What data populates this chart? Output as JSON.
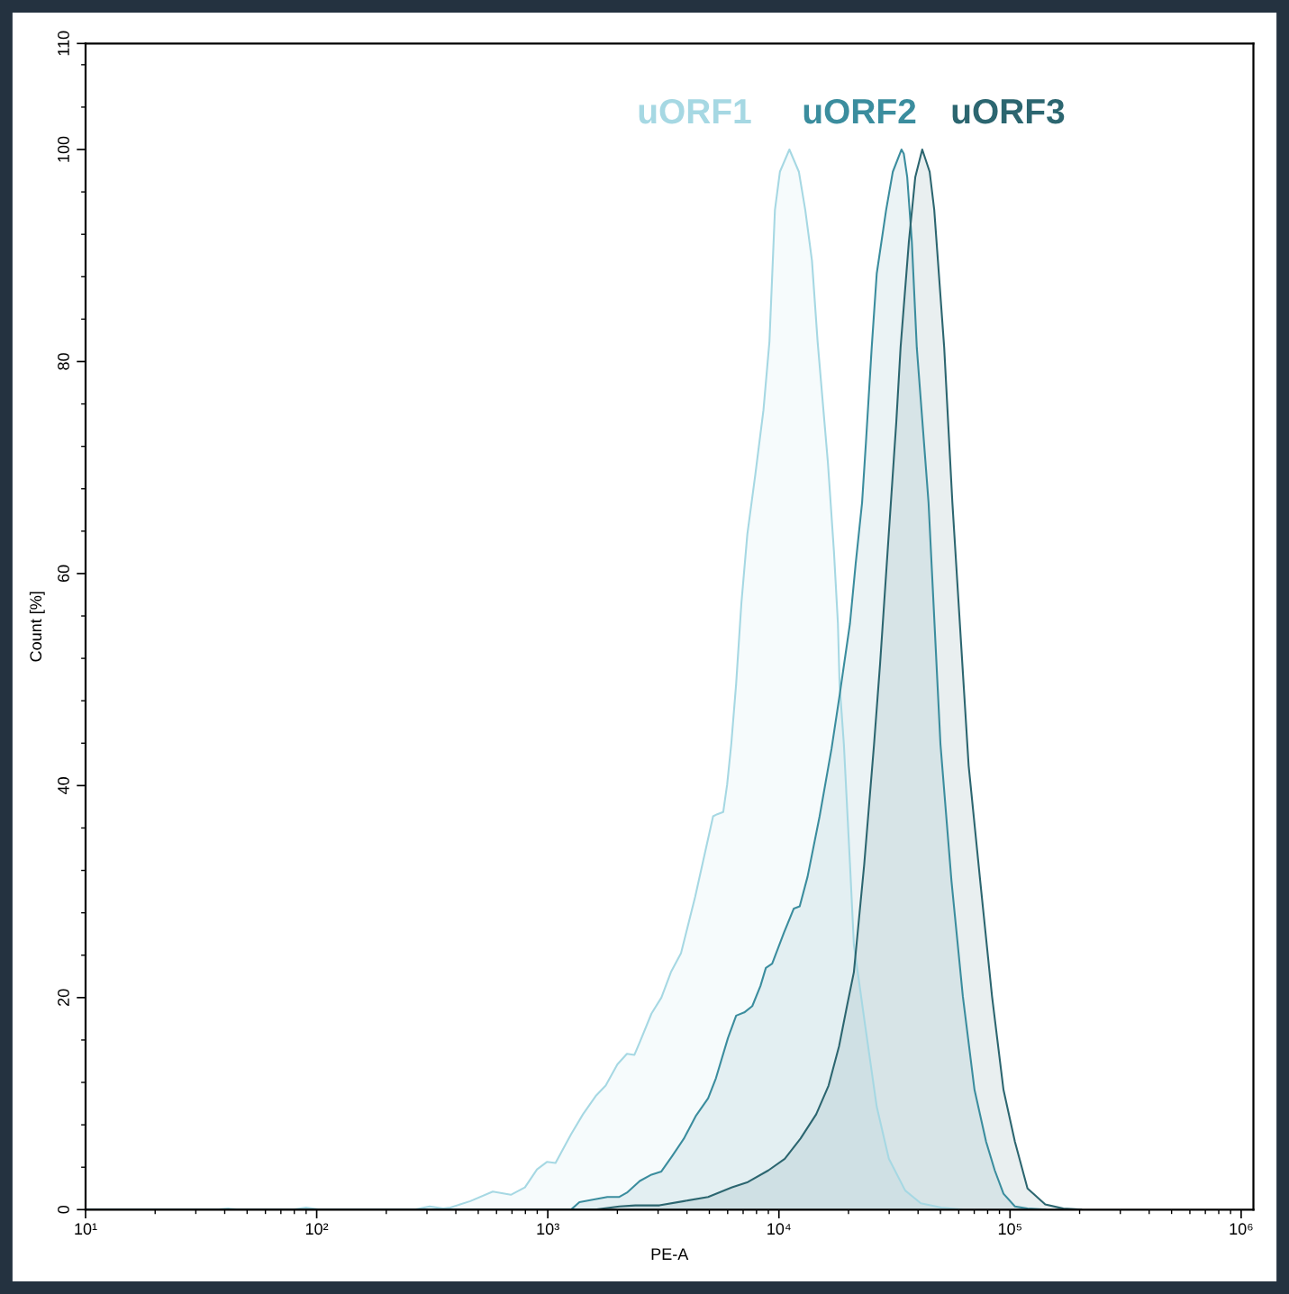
{
  "chart_data": {
    "type": "area",
    "xlabel": "PE-A",
    "ylabel": "Count [%]",
    "log": "x",
    "xlim": [
      10,
      1130000
    ],
    "ylim": [
      0,
      110
    ],
    "xticks": [
      {
        "value": 10,
        "label": "10¹"
      },
      {
        "value": 100,
        "label": "10²"
      },
      {
        "value": 1000,
        "label": "10³"
      },
      {
        "value": 10000,
        "label": "10⁴"
      },
      {
        "value": 100000,
        "label": "10⁵"
      },
      {
        "value": 1000000,
        "label": "10⁶"
      },
      {
        "value": 20,
        "label": null
      },
      {
        "value": 30,
        "label": null
      },
      {
        "value": 40,
        "label": null
      },
      {
        "value": 50,
        "label": null
      },
      {
        "value": 60,
        "label": null
      },
      {
        "value": 70,
        "label": null
      },
      {
        "value": 80,
        "label": null
      },
      {
        "value": 90,
        "label": null
      },
      {
        "value": 200,
        "label": null
      },
      {
        "value": 300,
        "label": null
      },
      {
        "value": 400,
        "label": null
      },
      {
        "value": 500,
        "label": null
      },
      {
        "value": 600,
        "label": null
      },
      {
        "value": 700,
        "label": null
      },
      {
        "value": 800,
        "label": null
      },
      {
        "value": 900,
        "label": null
      },
      {
        "value": 2000,
        "label": null
      },
      {
        "value": 3000,
        "label": null
      },
      {
        "value": 4000,
        "label": null
      },
      {
        "value": 5000,
        "label": null
      },
      {
        "value": 6000,
        "label": null
      },
      {
        "value": 7000,
        "label": null
      },
      {
        "value": 8000,
        "label": null
      },
      {
        "value": 9000,
        "label": null
      },
      {
        "value": 20000,
        "label": null
      },
      {
        "value": 30000,
        "label": null
      },
      {
        "value": 40000,
        "label": null
      },
      {
        "value": 50000,
        "label": null
      },
      {
        "value": 60000,
        "label": null
      },
      {
        "value": 70000,
        "label": null
      },
      {
        "value": 80000,
        "label": null
      },
      {
        "value": 90000,
        "label": null
      },
      {
        "value": 200000,
        "label": null
      },
      {
        "value": 300000,
        "label": null
      },
      {
        "value": 400000,
        "label": null
      },
      {
        "value": 500000,
        "label": null
      },
      {
        "value": 600000,
        "label": null
      },
      {
        "value": 700000,
        "label": null
      },
      {
        "value": 800000,
        "label": null
      },
      {
        "value": 900000,
        "label": null
      }
    ],
    "yticks": [
      0,
      20,
      40,
      60,
      80,
      100,
      110,
      {
        "value": 4,
        "label": null
      },
      {
        "value": 8,
        "label": null
      },
      {
        "value": 12,
        "label": null
      },
      {
        "value": 16,
        "label": null
      },
      {
        "value": 24,
        "label": null
      },
      {
        "value": 28,
        "label": null
      },
      {
        "value": 32,
        "label": null
      },
      {
        "value": 36,
        "label": null
      },
      {
        "value": 44,
        "label": null
      },
      {
        "value": 48,
        "label": null
      },
      {
        "value": 52,
        "label": null
      },
      {
        "value": 56,
        "label": null
      },
      {
        "value": 64,
        "label": null
      },
      {
        "value": 68,
        "label": null
      },
      {
        "value": 72,
        "label": null
      },
      {
        "value": 76,
        "label": null
      },
      {
        "value": 84,
        "label": null
      },
      {
        "value": 88,
        "label": null
      },
      {
        "value": 92,
        "label": null
      },
      {
        "value": 96,
        "label": null
      },
      {
        "value": 104,
        "label": null
      },
      {
        "value": 108,
        "label": null
      }
    ],
    "series": [
      {
        "name": "uORF1",
        "color": "#a6d8e3",
        "x": [
          10,
          36.7,
          41.3,
          46.4,
          78.8,
          90,
          103,
          265,
          308,
          353,
          379,
          462,
          578,
          692,
          796,
          898,
          991,
          1080,
          1190,
          1260,
          1420,
          1610,
          1780,
          2000,
          2200,
          2370,
          2500,
          2810,
          3100,
          3410,
          3770,
          4340,
          5190,
          5410,
          5740,
          5970,
          6220,
          6530,
          6880,
          7300,
          7910,
          8570,
          9100,
          9610,
          10100,
          11100,
          12200,
          13000,
          13900,
          14700,
          16300,
          17300,
          18000,
          18300,
          19100,
          20300,
          21100,
          23600,
          26500,
          29900,
          35200,
          41100,
          50400,
          61600
        ],
        "values": [
          0,
          0,
          0.1,
          0,
          0,
          0.2,
          0,
          0,
          0.3,
          0.1,
          0.2,
          0.8,
          1.7,
          1.4,
          2.1,
          3.8,
          4.5,
          4.4,
          6.1,
          7.1,
          9.0,
          10.7,
          11.7,
          13.7,
          14.7,
          14.6,
          15.8,
          18.5,
          20.0,
          22.4,
          24.2,
          29.5,
          37.1,
          37.3,
          37.5,
          40.1,
          43.9,
          49.6,
          57.2,
          63.7,
          69.4,
          75.4,
          81.9,
          94.3,
          97.9,
          100,
          97.9,
          94.3,
          89.5,
          81.9,
          70.4,
          62.1,
          55.3,
          49.6,
          43.9,
          32.6,
          25.0,
          17.4,
          9.7,
          4.8,
          1.8,
          0.6,
          0.2,
          0
        ]
      },
      {
        "name": "uORF2",
        "color": "#3b8d9e",
        "x": [
          10,
          1260,
          1370,
          1810,
          2040,
          2200,
          2500,
          2810,
          3100,
          3440,
          3880,
          4360,
          4940,
          5340,
          6020,
          6530,
          7080,
          7670,
          8320,
          8780,
          9350,
          10500,
          11600,
          12300,
          13300,
          15000,
          16900,
          18300,
          20300,
          21500,
          22900,
          23800,
          25200,
          26500,
          29100,
          31100,
          33900,
          34700,
          35900,
          37600,
          39500,
          44400,
          50000,
          55800,
          62500,
          70200,
          78800,
          85900,
          93700,
          105000,
          119000,
          142000
        ],
        "values": [
          0,
          0,
          0.7,
          1.2,
          1.2,
          1.6,
          2.7,
          3.3,
          3.6,
          5.0,
          6.7,
          8.8,
          10.5,
          12.4,
          16.2,
          18.3,
          18.6,
          19.2,
          21.1,
          22.8,
          23.2,
          26.1,
          28.4,
          28.6,
          31.4,
          37.1,
          43.5,
          48.5,
          55.3,
          61.0,
          66.7,
          72.4,
          81.3,
          88.3,
          94.3,
          97.9,
          100,
          99.6,
          97.4,
          91.3,
          81.3,
          66.7,
          43.9,
          31.0,
          20.1,
          11.3,
          6.4,
          3.7,
          1.5,
          0.3,
          0.1,
          0
        ]
      },
      {
        "name": "uORF3",
        "color": "#2c6670",
        "x": [
          10,
          1600,
          2040,
          2390,
          3040,
          3880,
          4940,
          6270,
          7340,
          9000,
          10600,
          12400,
          14500,
          16400,
          18200,
          19700,
          21100,
          23400,
          25800,
          27400,
          29700,
          32200,
          33600,
          36500,
          38900,
          41700,
          44900,
          47000,
          51900,
          56300,
          66200,
          74300,
          83600,
          93700,
          105000,
          119000,
          142000,
          170000,
          203000
        ],
        "values": [
          0,
          0,
          0.3,
          0.4,
          0.4,
          0.8,
          1.2,
          2.1,
          2.6,
          3.7,
          4.8,
          6.7,
          9.0,
          11.7,
          15.4,
          19.2,
          22.4,
          32.6,
          43.9,
          51.5,
          62.9,
          74.3,
          81.3,
          91.3,
          97.4,
          100,
          97.9,
          94.3,
          81.3,
          66.7,
          41.9,
          31.0,
          20.1,
          11.3,
          6.4,
          2.0,
          0.5,
          0.1,
          0
        ]
      }
    ]
  }
}
